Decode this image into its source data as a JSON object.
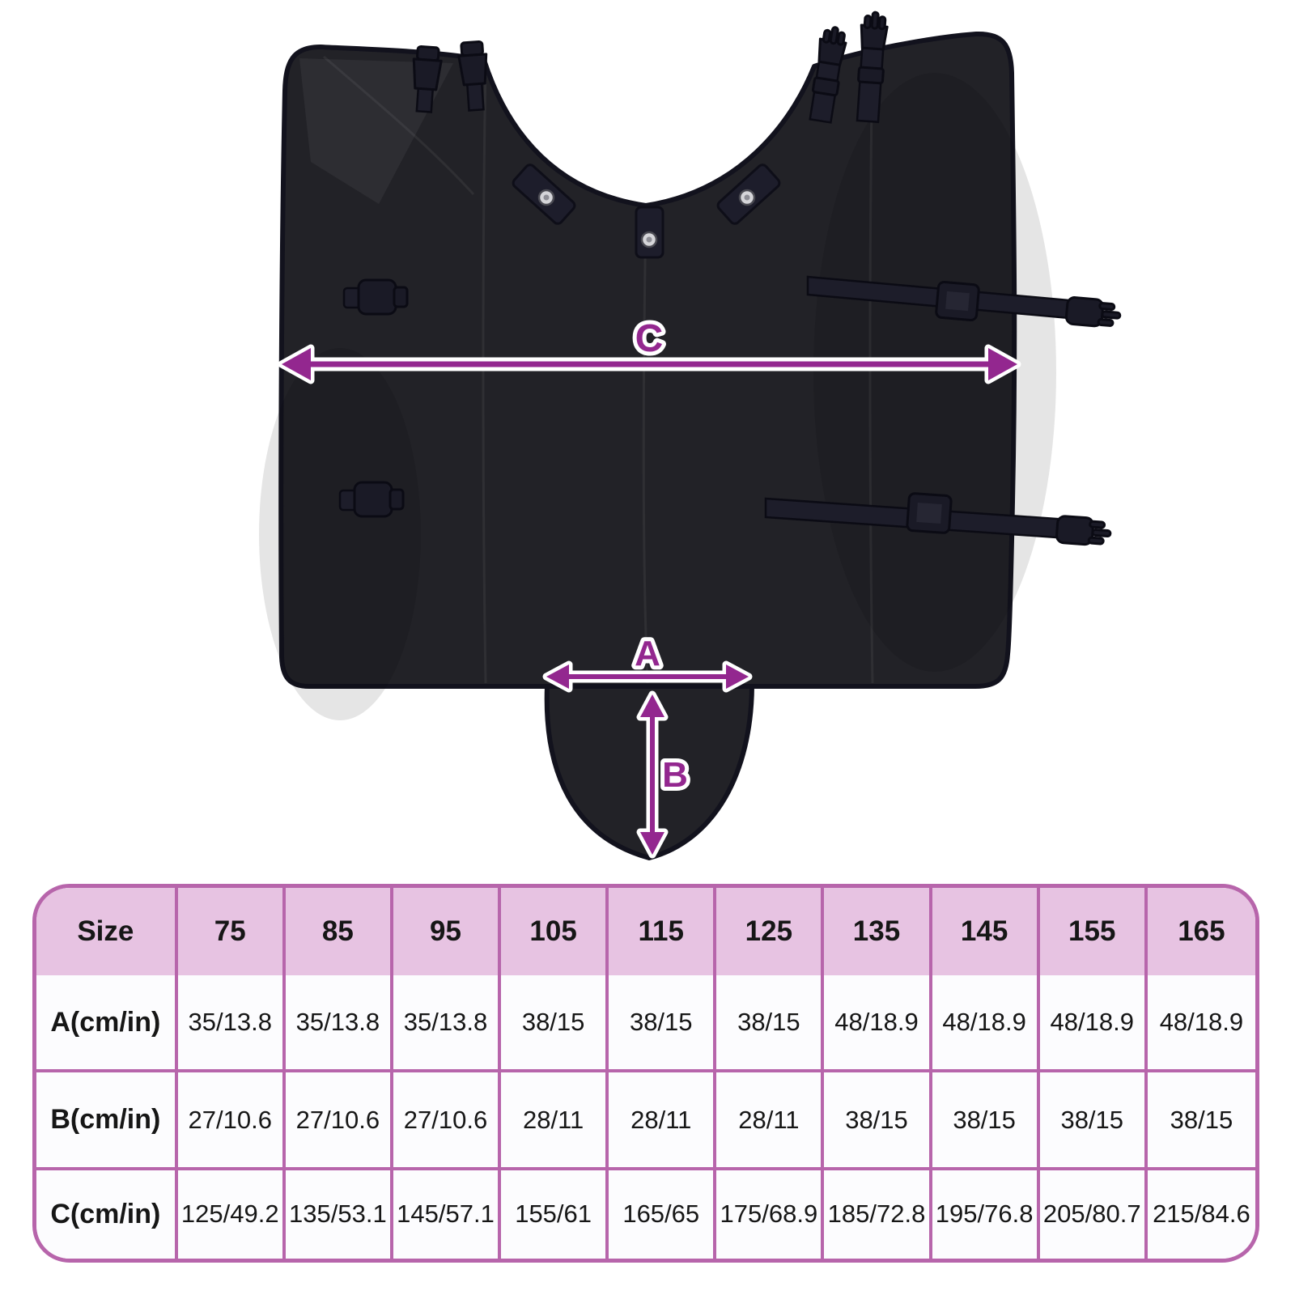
{
  "page": {
    "background_color": "#ffffff"
  },
  "diagram": {
    "labels": {
      "a": "A",
      "b": "B",
      "c": "C"
    },
    "arrow_color": "#93278f",
    "garment_color": "#222227"
  },
  "size_table": {
    "corner_label": "Size",
    "sizes": [
      "75",
      "85",
      "95",
      "105",
      "115",
      "125",
      "135",
      "145",
      "155",
      "165"
    ],
    "rows": [
      {
        "label": "A(cm/in)",
        "values": [
          "35/13.8",
          "35/13.8",
          "35/13.8",
          "38/15",
          "38/15",
          "38/15",
          "48/18.9",
          "48/18.9",
          "48/18.9",
          "48/18.9"
        ]
      },
      {
        "label": "B(cm/in)",
        "values": [
          "27/10.6",
          "27/10.6",
          "27/10.6",
          "28/11",
          "28/11",
          "28/11",
          "38/15",
          "38/15",
          "38/15",
          "38/15"
        ]
      },
      {
        "label": "C(cm/in)",
        "values": [
          "125/49.2",
          "135/53.1",
          "145/57.1",
          "155/61",
          "165/65",
          "175/68.9",
          "185/72.8",
          "195/76.8",
          "205/80.7",
          "215/84.6"
        ]
      }
    ],
    "colors": {
      "border": "#b765ab",
      "header_bg": "#e7c3e2",
      "cell_bg": "#fcfcfe",
      "text": "#161616"
    }
  },
  "chart_data": {
    "type": "table",
    "columns": [
      "Size",
      "75",
      "85",
      "95",
      "105",
      "115",
      "125",
      "135",
      "145",
      "155",
      "165"
    ],
    "rows": [
      [
        "A(cm/in)",
        "35/13.8",
        "35/13.8",
        "35/13.8",
        "38/15",
        "38/15",
        "38/15",
        "48/18.9",
        "48/18.9",
        "48/18.9",
        "48/18.9"
      ],
      [
        "B(cm/in)",
        "27/10.6",
        "27/10.6",
        "27/10.6",
        "28/11",
        "28/11",
        "28/11",
        "38/15",
        "38/15",
        "38/15",
        "38/15"
      ],
      [
        "C(cm/in)",
        "125/49.2",
        "135/53.1",
        "145/57.1",
        "155/61",
        "165/65",
        "175/68.9",
        "185/72.8",
        "195/76.8",
        "205/80.7",
        "215/84.6"
      ]
    ]
  }
}
